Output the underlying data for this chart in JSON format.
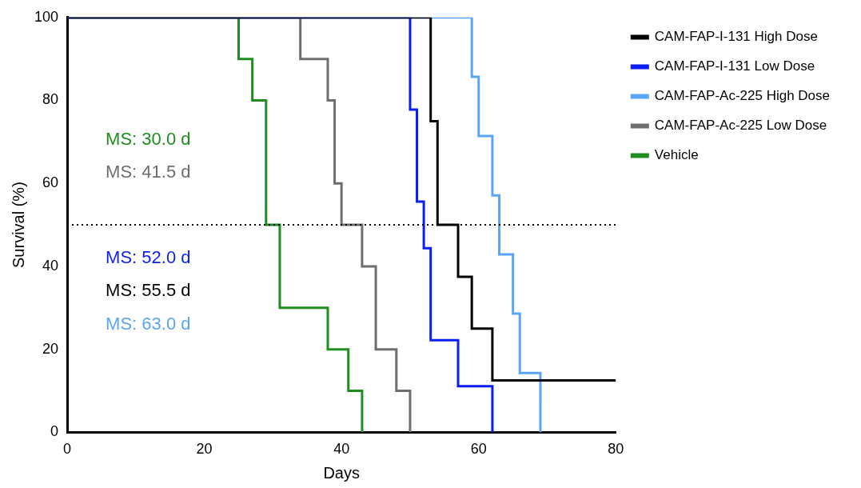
{
  "chart_data": {
    "type": "step",
    "xlabel": "Days",
    "ylabel": "Survival (%)",
    "xlim": [
      0,
      80
    ],
    "xticks": [
      0,
      20,
      40,
      60,
      80
    ],
    "ylim": [
      0,
      100
    ],
    "yticks": [
      0,
      20,
      40,
      60,
      80,
      100
    ],
    "grid": false,
    "legend": "top right",
    "line_style": "solid",
    "marker": "none",
    "series": [
      {
        "name": "CAM-FAP-I-131 High Dose",
        "color": "#000000",
        "x": [
          0,
          53,
          54,
          57,
          59,
          62,
          80
        ],
        "values": [
          100,
          75,
          50,
          37.5,
          25,
          12.5,
          12.5
        ]
      },
      {
        "name": "CAM-FAP-I-131 Low Dose",
        "color": "#0a1ef5",
        "x": [
          0,
          50,
          51,
          52,
          53,
          57,
          62
        ],
        "values": [
          100,
          77.8,
          55.6,
          44.4,
          22.2,
          11.1,
          0
        ]
      },
      {
        "name": "CAM-FAP-Ac-225 High Dose",
        "color": "#5aa5f5",
        "x": [
          0,
          59,
          60,
          62,
          63,
          65,
          66,
          69
        ],
        "values": [
          100,
          85.7,
          71.4,
          57.1,
          42.9,
          28.6,
          14.3,
          0
        ]
      },
      {
        "name": "CAM-FAP-Ac-225 Low Dose",
        "color": "#6e6e6e",
        "x": [
          0,
          34,
          38,
          39,
          40,
          43,
          45,
          48,
          50
        ],
        "values": [
          100,
          90,
          80,
          60,
          50,
          40,
          20,
          10,
          0
        ]
      },
      {
        "name": "Vehicle",
        "color": "#1e8c1e",
        "x": [
          0,
          25,
          27,
          29,
          31,
          38,
          41,
          43
        ],
        "values": [
          100,
          90,
          80,
          50,
          30,
          20,
          10,
          0
        ]
      }
    ],
    "ref_lines": [
      {
        "axis": "y",
        "value": 50,
        "line_style": "dotted",
        "color": "#000000"
      }
    ],
    "annotations": [
      "MS: 30.0 d",
      "MS: 41.5 d",
      "MS: 52.0 d",
      "MS: 55.5 d",
      "MS: 63.0 d"
    ]
  }
}
